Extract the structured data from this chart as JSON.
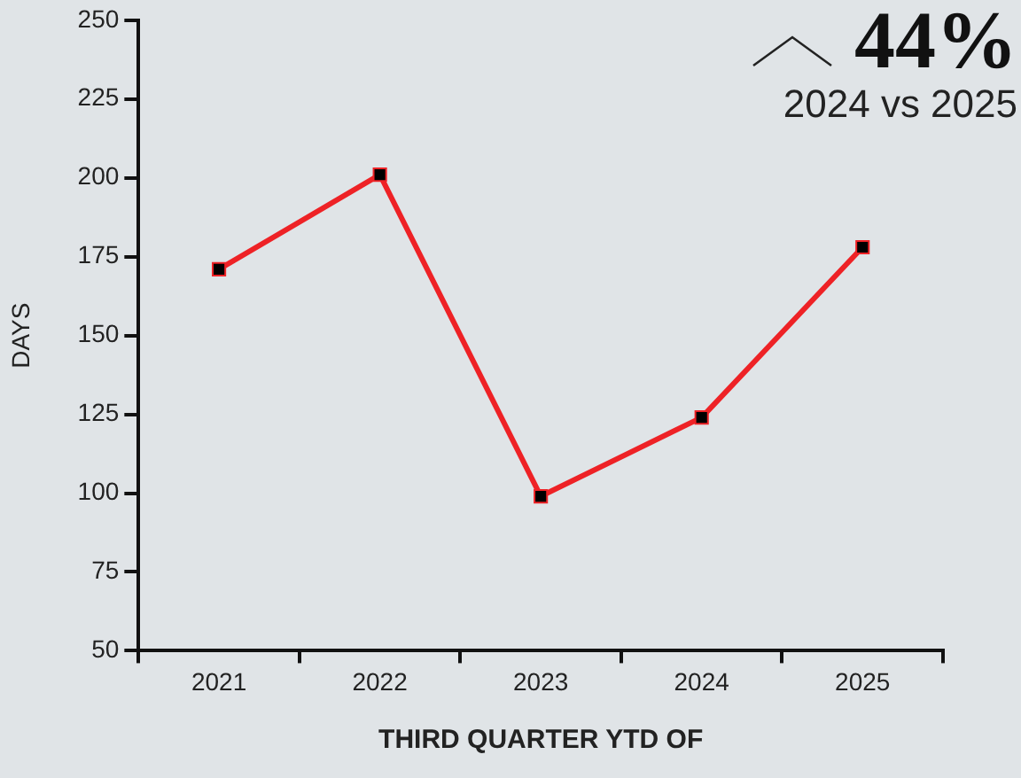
{
  "chart_data": {
    "type": "line",
    "xlabel": "THIRD QUARTER YTD OF",
    "ylabel": "DAYS",
    "categories": [
      "2021",
      "2022",
      "2023",
      "2024",
      "2025"
    ],
    "series": [
      {
        "color": "#ee2226",
        "values": [
          171,
          201,
          99,
          124,
          178
        ]
      }
    ],
    "ylim": [
      50,
      250
    ],
    "yticks": [
      50,
      75,
      100,
      125,
      150,
      175,
      200,
      225,
      250
    ],
    "grid": false,
    "legend": false,
    "marker": "square",
    "line_style": "solid",
    "annotations": [
      "44%",
      "2024 vs 2025"
    ]
  }
}
